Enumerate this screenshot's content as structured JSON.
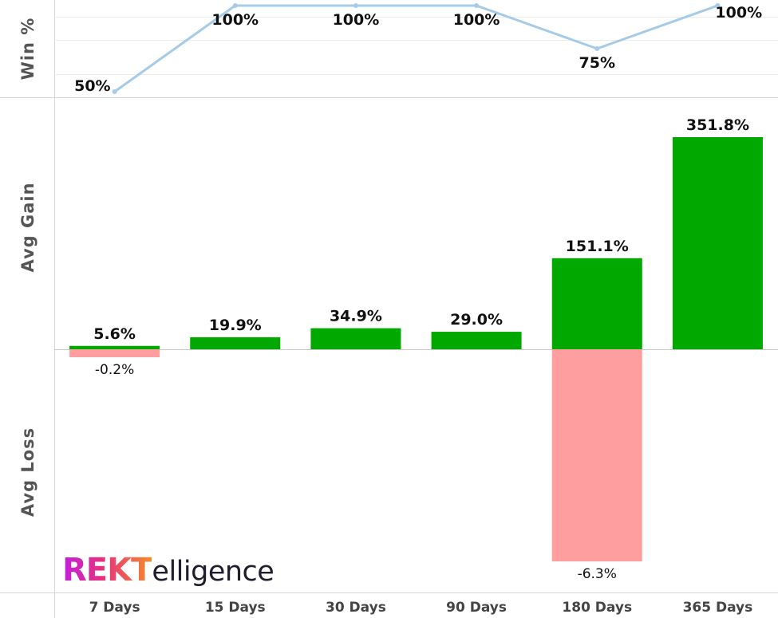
{
  "chart_data": {
    "type": "bar",
    "categories": [
      "7 Days",
      "15 Days",
      "30 Days",
      "90 Days",
      "180 Days",
      "365 Days"
    ],
    "win_pct": {
      "axis_title": "Win %",
      "type": "line",
      "values": [
        50,
        100,
        100,
        100,
        75,
        100
      ],
      "labels": [
        "50%",
        "100%",
        "100%",
        "100%",
        "75%",
        "100%"
      ],
      "color": "#a6cbe8"
    },
    "avg_gain": {
      "axis_title": "Avg Gain",
      "values": [
        5.6,
        19.9,
        34.9,
        29.0,
        151.1,
        351.8
      ],
      "labels": [
        "5.6%",
        "19.9%",
        "34.9%",
        "29.0%",
        "151.1%",
        "351.8%"
      ],
      "color": "#00a800"
    },
    "avg_loss": {
      "axis_title": "Avg Loss",
      "values": [
        -0.2,
        0,
        0,
        0,
        -6.3,
        0
      ],
      "labels": [
        "-0.2%",
        "",
        "",
        "",
        "-6.3%",
        ""
      ],
      "color": "#ff9e9e"
    }
  },
  "logo": {
    "part1": "REKT",
    "part2": "elligence"
  }
}
